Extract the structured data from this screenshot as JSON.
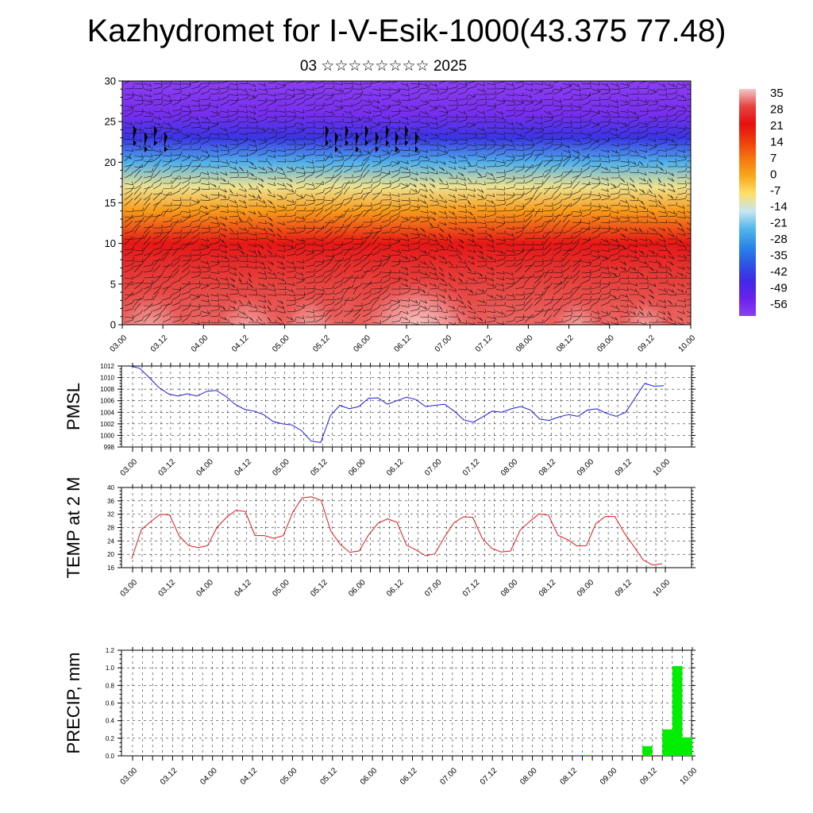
{
  "page": {
    "title": "Kazhydromet for I-V-Esik-1000(43.375 77.48)",
    "subtitle": "03 ☆☆☆☆☆☆☆☆ 2025"
  },
  "time_ticks": [
    "03.00",
    "03.12",
    "04.00",
    "04.12",
    "05.00",
    "05.12",
    "06.00",
    "06.12",
    "07.00",
    "07.12",
    "08.00",
    "08.12",
    "09.00",
    "09.12",
    "10.00"
  ],
  "colorbar": {
    "labels": [
      "35",
      "28",
      "21",
      "14",
      "7",
      "0",
      "-7",
      "-14",
      "-21",
      "-28",
      "-35",
      "-42",
      "-49",
      "-56"
    ],
    "colors": [
      "#f3c8c8",
      "#e7433f",
      "#e60f0f",
      "#ed3d0c",
      "#f5770f",
      "#f9a81d",
      "#fde06a",
      "#c6e6f0",
      "#55b6ec",
      "#2a88e8",
      "#2c56e3",
      "#4028e6",
      "#6a22ec",
      "#8b3ef2"
    ]
  },
  "chart_data": [
    {
      "type": "heatmap",
      "name": "vertical cross-section",
      "ylim": [
        0,
        30
      ],
      "yticks": [
        0,
        5,
        10,
        15,
        20,
        25,
        30
      ],
      "x": [
        "03.00",
        "03.12",
        "04.00",
        "04.12",
        "05.00",
        "05.12",
        "06.00",
        "06.12",
        "07.00",
        "07.12",
        "08.00",
        "08.12",
        "09.00",
        "09.12",
        "10.00"
      ],
      "colorbar_range": [
        -56,
        35
      ],
      "layers": [
        {
          "level": 0,
          "value": 30
        },
        {
          "level": 5,
          "value": 28
        },
        {
          "level": 10,
          "value": 22
        },
        {
          "level": 14,
          "value": 2
        },
        {
          "level": 17,
          "value": -9
        },
        {
          "level": 20,
          "value": -22
        },
        {
          "level": 23,
          "value": -40
        },
        {
          "level": 26,
          "value": -52
        },
        {
          "level": 30,
          "value": -56
        }
      ],
      "overlay": "wind barbs"
    },
    {
      "type": "line",
      "ylabel": "PMSL",
      "ylim": [
        998,
        1012
      ],
      "yticks": [
        998,
        1000,
        1002,
        1004,
        1006,
        1008,
        1010,
        1012
      ],
      "x_range_ticks": [
        0,
        14
      ],
      "color": "#1a1adc",
      "values": [
        1012,
        1011.6,
        1010,
        1008.3,
        1007.2,
        1006.8,
        1007.2,
        1006.8,
        1007.6,
        1007.8,
        1006.8,
        1005.4,
        1004.5,
        1004.2,
        1003.6,
        1002.4,
        1002,
        1001.8,
        1000.8,
        999,
        998.8,
        1003.4,
        1005.2,
        1004.6,
        1005,
        1006.4,
        1006.5,
        1005.4,
        1006,
        1006.6,
        1006.2,
        1005,
        1005.2,
        1005.4,
        1004.2,
        1002.7,
        1002.3,
        1003.2,
        1004.2,
        1004,
        1004.6,
        1005,
        1004.4,
        1002.8,
        1002.6,
        1003.2,
        1003.6,
        1003.3,
        1004.4,
        1004.6,
        1003.8,
        1003.3,
        1004,
        1006.5,
        1009,
        1008.5,
        1008.6
      ]
    },
    {
      "type": "line",
      "ylabel": "TEMP at 2 M",
      "ylim": [
        16,
        40
      ],
      "yticks": [
        16,
        20,
        24,
        28,
        32,
        36,
        40
      ],
      "color": "#e01818",
      "values": [
        18.7,
        27.3,
        29.8,
        32,
        31.8,
        25.5,
        22.6,
        22,
        22.6,
        28.1,
        31.1,
        33.2,
        32.8,
        25.6,
        25.6,
        24.8,
        25.6,
        32.6,
        36.9,
        37.2,
        36.1,
        27,
        23,
        20.6,
        21,
        25.8,
        29.3,
        30.6,
        29.6,
        22.8,
        21.3,
        19.6,
        20.1,
        25.1,
        29.4,
        31.2,
        31.1,
        24.8,
        21.8,
        20.7,
        21,
        27.2,
        29.8,
        32.1,
        31.7,
        25.7,
        24.4,
        22.5,
        22.6,
        29.2,
        31.3,
        31.3,
        26.4,
        22.4,
        18.3,
        16.8,
        17.2
      ]
    },
    {
      "type": "bar",
      "ylabel": "PRECIP, mm",
      "ylim": [
        0,
        1.2
      ],
      "yticks": [
        "0.0",
        "0.2",
        "0.4",
        "0.6",
        "0.8",
        "1.0",
        "1.2"
      ],
      "color": "#00ee00",
      "values": [
        {
          "x": 45,
          "v": 0.01
        },
        {
          "x": 51,
          "v": 0.11
        },
        {
          "x": 53,
          "v": 0.3
        },
        {
          "x": 54,
          "v": 1.02
        },
        {
          "x": 55,
          "v": 0.21
        }
      ]
    }
  ]
}
